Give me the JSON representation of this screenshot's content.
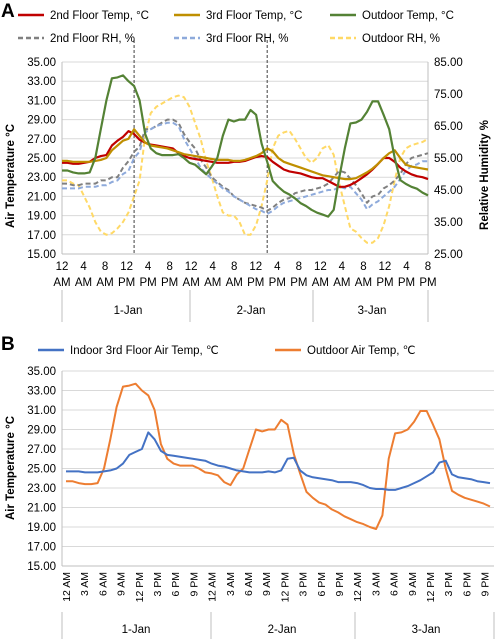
{
  "chart_data": [
    {
      "panel": "A",
      "type": "line",
      "ylabel": "Air Temperature °C",
      "y2label": "Relative Humidity %",
      "ylim": [
        15,
        35
      ],
      "y2lim": [
        25,
        85
      ],
      "yticks": [
        "15.00",
        "17.00",
        "19.00",
        "21.00",
        "23.00",
        "25.00",
        "27.00",
        "29.00",
        "31.00",
        "33.00",
        "35.00"
      ],
      "y2ticks": [
        "25.00",
        "35.00",
        "45.00",
        "55.00",
        "65.00",
        "75.00",
        "85.00"
      ],
      "xtick_top": [
        "12",
        "4",
        "8",
        "12",
        "4",
        "8",
        "12",
        "4",
        "8",
        "12",
        "4",
        "8",
        "12",
        "4",
        "8",
        "12",
        "4",
        "8"
      ],
      "xtick_bottom": [
        "AM",
        "AM",
        "AM",
        "PM",
        "PM",
        "PM",
        "AM",
        "AM",
        "AM",
        "PM",
        "PM",
        "PM",
        "AM",
        "AM",
        "AM",
        "PM",
        "PM",
        "PM"
      ],
      "days": [
        "1-Jan",
        "2-Jan",
        "3-Jan"
      ],
      "vlines_hours": [
        13,
        37
      ],
      "grid": true,
      "legend_position": "top",
      "series": [
        {
          "name": "2nd Floor Temp, °C",
          "axis": "left",
          "color": "#c00000",
          "dash": "solid",
          "values": [
            24.5,
            24.5,
            24.4,
            24.4,
            24.5,
            24.6,
            25.0,
            25.2,
            25.3,
            26.3,
            26.8,
            27.2,
            27.8,
            27.5,
            26.9,
            26.6,
            26.4,
            26.3,
            26.2,
            26.1,
            26.0,
            25.5,
            25.2,
            25.0,
            24.9,
            24.8,
            24.7,
            24.6,
            24.5,
            24.5,
            24.5,
            24.6,
            24.6,
            24.7,
            24.9,
            25.1,
            25.2,
            25.1,
            24.6,
            24.2,
            23.8,
            23.6,
            23.5,
            23.4,
            23.2,
            23.0,
            22.9,
            22.9,
            22.6,
            22.3,
            22.0,
            22.0,
            22.2,
            22.5,
            22.9,
            23.3,
            23.8,
            24.4,
            25.0,
            25.0,
            24.6,
            24.0,
            23.6,
            23.3,
            23.1,
            23.0,
            22.8
          ]
        },
        {
          "name": "3rd Floor Temp, °C",
          "axis": "left",
          "color": "#bf8f00",
          "dash": "solid",
          "values": [
            24.7,
            24.7,
            24.6,
            24.6,
            24.6,
            24.6,
            24.7,
            24.8,
            25.0,
            25.8,
            26.3,
            26.8,
            27.0,
            28.0,
            27.3,
            26.6,
            26.3,
            26.2,
            26.1,
            26.0,
            25.8,
            25.6,
            25.4,
            25.3,
            25.2,
            25.1,
            25.0,
            24.9,
            24.8,
            24.8,
            24.8,
            24.7,
            24.7,
            24.8,
            25.0,
            25.2,
            25.5,
            26.0,
            25.7,
            25.0,
            24.6,
            24.4,
            24.2,
            24.0,
            23.8,
            23.6,
            23.4,
            23.2,
            23.1,
            23.0,
            22.9,
            22.8,
            22.8,
            22.9,
            23.2,
            23.5,
            23.9,
            24.4,
            25.0,
            25.5,
            25.8,
            25.0,
            24.3,
            24.1,
            24.0,
            23.9,
            23.8
          ]
        },
        {
          "name": "Outdoor Temp, °C",
          "axis": "left",
          "color": "#548235",
          "dash": "solid",
          "values": [
            23.7,
            23.7,
            23.5,
            23.4,
            23.4,
            23.5,
            25.0,
            28.0,
            31.0,
            33.3,
            33.4,
            33.6,
            33.0,
            32.5,
            31.0,
            27.5,
            26.0,
            25.5,
            25.3,
            25.3,
            25.3,
            25.4,
            25.0,
            24.5,
            24.3,
            23.8,
            23.3,
            24.1,
            25.0,
            27.3,
            29.0,
            28.8,
            29.0,
            29.0,
            30.0,
            29.5,
            26.5,
            24.6,
            22.6,
            22.0,
            21.5,
            21.2,
            20.8,
            20.3,
            20.0,
            19.6,
            19.3,
            19.1,
            18.9,
            19.6,
            23.0,
            26.0,
            28.6,
            28.7,
            29.0,
            29.8,
            30.9,
            30.9,
            29.5,
            28.0,
            25.0,
            22.7,
            22.3,
            22.0,
            21.8,
            21.4,
            21.1
          ]
        },
        {
          "name": "2nd Floor RH, %",
          "axis": "right",
          "color": "#808080",
          "dash": "dash",
          "values": [
            47.0,
            47.0,
            46.5,
            46.5,
            47.0,
            47.0,
            47.0,
            48.0,
            48.0,
            49.0,
            49.0,
            52.0,
            54.0,
            57.0,
            58.5,
            64.0,
            64.0,
            65.0,
            66.0,
            67.0,
            67.0,
            66.0,
            62.5,
            60.0,
            58.0,
            54.5,
            52.0,
            49.0,
            47.5,
            46.0,
            45.0,
            43.0,
            42.0,
            41.0,
            40.5,
            40.0,
            39.5,
            38.5,
            39.5,
            41.0,
            42.0,
            42.5,
            44.0,
            44.5,
            45.0,
            45.0,
            45.5,
            46.0,
            47.0,
            49.0,
            51.0,
            50.5,
            48.5,
            46.5,
            44.0,
            41.0,
            43.0,
            43.5,
            45.5,
            46.5,
            48.0,
            50.0,
            53.0,
            55.0,
            55.5,
            56.0,
            56.5
          ]
        },
        {
          "name": "3rd Floor RH, %",
          "axis": "right",
          "color": "#8eaadb",
          "dash": "dash",
          "values": [
            45.5,
            45.5,
            45.5,
            45.5,
            46.0,
            46.0,
            46.0,
            46.5,
            46.5,
            47.5,
            48.0,
            50.0,
            51.0,
            55.0,
            57.0,
            63.0,
            64.0,
            65.0,
            65.5,
            66.0,
            66.0,
            65.0,
            61.0,
            58.0,
            55.0,
            52.0,
            50.0,
            48.5,
            47.0,
            45.5,
            44.5,
            43.0,
            42.0,
            41.0,
            40.0,
            39.0,
            38.5,
            37.5,
            38.5,
            40.0,
            41.0,
            41.5,
            42.0,
            42.5,
            43.0,
            43.5,
            44.0,
            44.5,
            45.0,
            45.0,
            46.0,
            45.5,
            46.0,
            44.0,
            42.0,
            39.0,
            40.5,
            41.5,
            43.0,
            44.5,
            46.0,
            48.5,
            51.0,
            52.5,
            53.0,
            54.0,
            54.0
          ]
        },
        {
          "name": "Outdoor RH, %",
          "axis": "right",
          "color": "#ffd966",
          "dash": "dash",
          "values": [
            48.0,
            48.0,
            47.0,
            46.5,
            43.0,
            39.5,
            35.0,
            32.0,
            31.0,
            31.5,
            33.0,
            35.0,
            38.0,
            43.0,
            48.0,
            62.0,
            69.0,
            71.0,
            72.0,
            73.0,
            74.0,
            74.5,
            74.0,
            71.0,
            66.0,
            61.0,
            54.0,
            49.0,
            43.0,
            38.0,
            37.0,
            37.0,
            35.0,
            31.0,
            31.0,
            34.0,
            40.0,
            48.0,
            58.0,
            62.0,
            63.0,
            63.5,
            61.0,
            58.0,
            55.0,
            53.5,
            55.0,
            58.0,
            59.0,
            56.0,
            47.0,
            40.0,
            33.0,
            32.0,
            30.0,
            28.5,
            28.5,
            30.0,
            34.0,
            40.0,
            48.0,
            55.0,
            58.0,
            59.0,
            59.5,
            60.0,
            61.0
          ]
        }
      ]
    },
    {
      "panel": "B",
      "type": "line",
      "ylabel": "Air Temperature °C",
      "ylim": [
        15,
        35
      ],
      "yticks": [
        "15.00",
        "17.00",
        "19.00",
        "21.00",
        "23.00",
        "25.00",
        "27.00",
        "29.00",
        "31.00",
        "33.00",
        "35.00"
      ],
      "xticks": [
        "12 AM",
        "3 AM",
        "6 AM",
        "9 AM",
        "12 PM",
        "3 PM",
        "6 PM",
        "9 PM",
        "12 AM",
        "3 AM",
        "6 AM",
        "9 AM",
        "12 PM",
        "3 PM",
        "6 PM",
        "9 PM",
        "12 AM",
        "3 AM",
        "6 AM",
        "9 AM",
        "12 PM",
        "3 PM",
        "6 PM",
        "9 PM"
      ],
      "days": [
        "1-Jan",
        "2-Jan",
        "3-Jan"
      ],
      "grid": true,
      "legend_position": "top",
      "series": [
        {
          "name": "Indoor 3rd Floor Air Temp, ℃",
          "color": "#4472c4",
          "values": [
            24.7,
            24.7,
            24.7,
            24.6,
            24.6,
            24.6,
            24.7,
            24.8,
            25.0,
            25.5,
            26.4,
            26.7,
            27.0,
            28.7,
            28.0,
            26.8,
            26.4,
            26.3,
            26.2,
            26.1,
            26.0,
            25.9,
            25.8,
            25.5,
            25.3,
            25.2,
            25.0,
            24.8,
            24.7,
            24.6,
            24.6,
            24.6,
            24.7,
            24.6,
            24.8,
            26.0,
            26.1,
            24.8,
            24.3,
            24.1,
            24.0,
            23.9,
            23.8,
            23.6,
            23.6,
            23.6,
            23.5,
            23.3,
            23.0,
            22.9,
            22.9,
            22.8,
            22.8,
            23.0,
            23.2,
            23.5,
            23.8,
            24.2,
            24.6,
            25.6,
            25.8,
            24.4,
            24.1,
            24.0,
            23.9,
            23.7,
            23.6,
            23.5
          ]
        },
        {
          "name": "Outdoor Air Temp, ℃",
          "color": "#ed7d31",
          "values": [
            23.7,
            23.7,
            23.5,
            23.4,
            23.4,
            23.5,
            25.0,
            28.0,
            31.3,
            33.4,
            33.5,
            33.7,
            33.0,
            32.5,
            31.0,
            27.5,
            26.0,
            25.5,
            25.3,
            25.3,
            25.3,
            25.0,
            24.6,
            24.5,
            24.3,
            23.6,
            23.3,
            24.4,
            25.0,
            27.0,
            29.0,
            28.8,
            29.0,
            29.0,
            30.0,
            29.5,
            26.5,
            24.5,
            22.6,
            22.0,
            21.5,
            21.3,
            20.8,
            20.5,
            20.1,
            19.8,
            19.5,
            19.3,
            19.0,
            18.8,
            20.2,
            26.0,
            28.6,
            28.7,
            29.0,
            29.8,
            30.9,
            30.9,
            29.5,
            28.0,
            25.0,
            22.7,
            22.3,
            22.0,
            21.8,
            21.6,
            21.4,
            21.1
          ]
        }
      ]
    }
  ]
}
